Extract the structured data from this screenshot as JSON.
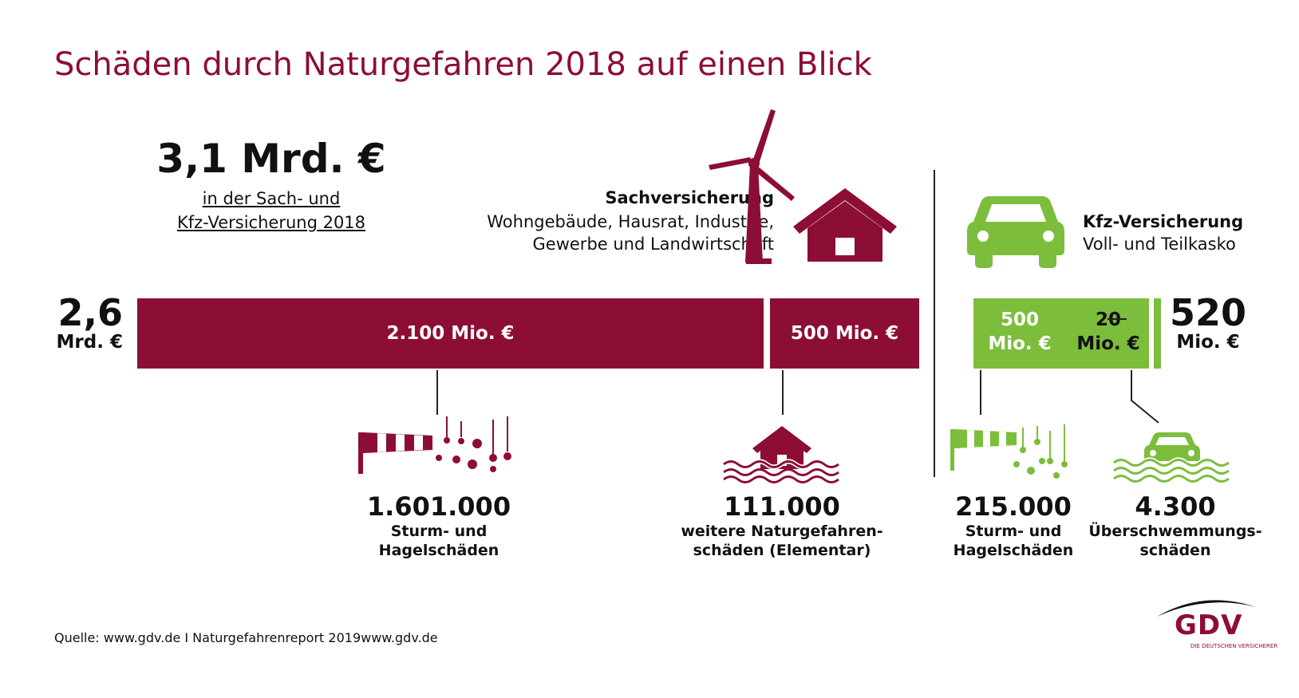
{
  "title": "Schäden durch Naturgefahren 2018 auf einen Blick",
  "total": {
    "value": "3,1 Mrd. €",
    "caption_line1": "in der Sach- und",
    "caption_line2": "Kfz-Versicherung 2018"
  },
  "sach": {
    "title": "Sachversicherung",
    "subtitle_line1": "Wohngebäude, Hausrat, Industrie,",
    "subtitle_line2": "Gewerbe und Landwirtschaft",
    "total_big": "2,6",
    "total_small": "Mrd. €"
  },
  "kfz": {
    "title": "Kfz-Versicherung",
    "subtitle": "Voll- und Teilkasko",
    "total_big": "520",
    "total_small": "Mio. €"
  },
  "chart_data": {
    "type": "bar",
    "orientation": "horizontal-stacked",
    "unit": "Mio. €",
    "groups": [
      {
        "name": "Sachversicherung",
        "total": 2600,
        "segments": [
          {
            "value": 2100,
            "label": "2.100 Mio. €"
          },
          {
            "value": 500,
            "label": "500 Mio. €"
          }
        ]
      },
      {
        "name": "Kfz-Versicherung",
        "total": 520,
        "segments": [
          {
            "value": 500,
            "label_line1": "500",
            "label_line2": "Mio. €"
          },
          {
            "value": 20,
            "label_line1": "20",
            "label_line2": "Mio. €"
          }
        ]
      }
    ]
  },
  "stats": [
    {
      "number": "1.601.000",
      "line1": "Sturm- und",
      "line2": "Hagelschäden"
    },
    {
      "number": "111.000",
      "line1": "weitere Naturgefahren-",
      "line2": "schäden (Elementar)"
    },
    {
      "number": "215.000",
      "line1": "Sturm- und",
      "line2": "Hagelschäden"
    },
    {
      "number": "4.300",
      "line1": "Überschwemmungs-",
      "line2": "schäden"
    }
  ],
  "source": "Quelle: www.gdv.de I Naturgefahrenreport 2019www.gdv.de",
  "logo": {
    "text": "GDV",
    "tagline": "DIE DEUTSCHEN VERSICHERER"
  },
  "colors": {
    "sach": "#8c0e35",
    "kfz": "#7cbd3c"
  },
  "icons": [
    "wind-turbine-icon",
    "house-icon",
    "car-icon",
    "windsock-hail-icon",
    "flooded-house-icon",
    "flooded-car-icon"
  ]
}
